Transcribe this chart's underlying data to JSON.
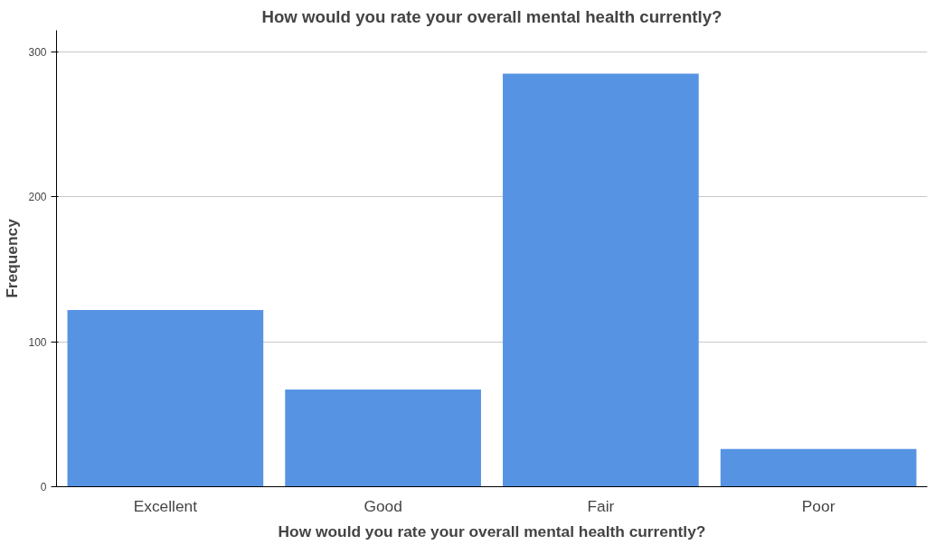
{
  "chart_data": {
    "type": "bar",
    "title": "How would you rate your overall mental health currently?",
    "xlabel": "How would you rate your overall mental health currently?",
    "ylabel": "Frequency",
    "categories": [
      "Excellent",
      "Good",
      "Fair",
      "Poor"
    ],
    "values": [
      122,
      67,
      285,
      26
    ],
    "color": "#5694e3",
    "ylim": [
      0,
      315
    ],
    "yticks": [
      0,
      100,
      200,
      300
    ],
    "grid": "y"
  }
}
